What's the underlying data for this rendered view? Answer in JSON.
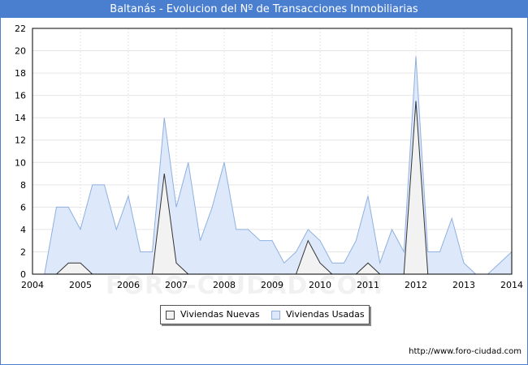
{
  "title": "Baltanás - Evolucion del Nº de Transacciones Inmobiliarias",
  "footer_url": "http://www.foro-ciudad.com",
  "watermark": "FORO-CIUDAD.COM",
  "colors": {
    "header": "#4a7fcf",
    "nuevas_fill": "#f2f2f2",
    "nuevas_line": "#333333",
    "usadas_fill": "#dde9fb",
    "usadas_line": "#8fb0e0",
    "grid": "#e6e6e6"
  },
  "chart_data": {
    "type": "area",
    "title": "Baltanás - Evolucion del Nº de Transacciones Inmobiliarias",
    "xlabel": "",
    "ylabel": "",
    "xlim": [
      2004,
      2014
    ],
    "ylim": [
      0,
      22
    ],
    "x_ticks": [
      2004,
      2005,
      2006,
      2007,
      2008,
      2009,
      2010,
      2011,
      2012,
      2013,
      2014
    ],
    "y_ticks": [
      0,
      2,
      4,
      6,
      8,
      10,
      12,
      14,
      16,
      18,
      20,
      22
    ],
    "grid": true,
    "legend_position": "bottom",
    "series": [
      {
        "name": "Viviendas Usadas",
        "x": [
          2004.25,
          2004.5,
          2004.75,
          2005.0,
          2005.25,
          2005.5,
          2005.75,
          2006.0,
          2006.25,
          2006.5,
          2006.75,
          2007.0,
          2007.25,
          2007.5,
          2007.75,
          2008.0,
          2008.25,
          2008.5,
          2008.75,
          2009.0,
          2009.25,
          2009.5,
          2009.75,
          2010.0,
          2010.25,
          2010.5,
          2010.75,
          2011.0,
          2011.25,
          2011.5,
          2011.75,
          2012.0,
          2012.25,
          2012.5,
          2012.75,
          2013.0,
          2013.25,
          2013.5,
          2013.75,
          2014.0
        ],
        "values": [
          0,
          6,
          6,
          4,
          8,
          8,
          4,
          7,
          2,
          2,
          14,
          6,
          10,
          3,
          6,
          10,
          4,
          4,
          3,
          3,
          1,
          2,
          4,
          3,
          1,
          1,
          3,
          7,
          1,
          4,
          2,
          19.5,
          2,
          2,
          5,
          1,
          0,
          0,
          1,
          2
        ]
      },
      {
        "name": "Viviendas Nuevas",
        "x": [
          2004.5,
          2004.75,
          2005.0,
          2005.25,
          2006.5,
          2006.75,
          2007.0,
          2007.25,
          2009.5,
          2009.75,
          2010.0,
          2010.25,
          2010.75,
          2011.0,
          2011.25,
          2011.75,
          2012.0,
          2012.25
        ],
        "values": [
          0,
          1,
          1,
          0,
          0,
          9,
          1,
          0,
          0,
          3,
          1,
          0,
          0,
          1,
          0,
          0,
          15.5,
          0
        ]
      }
    ]
  },
  "legend": {
    "nuevas_label": "Viviendas Nuevas",
    "usadas_label": "Viviendas Usadas"
  }
}
